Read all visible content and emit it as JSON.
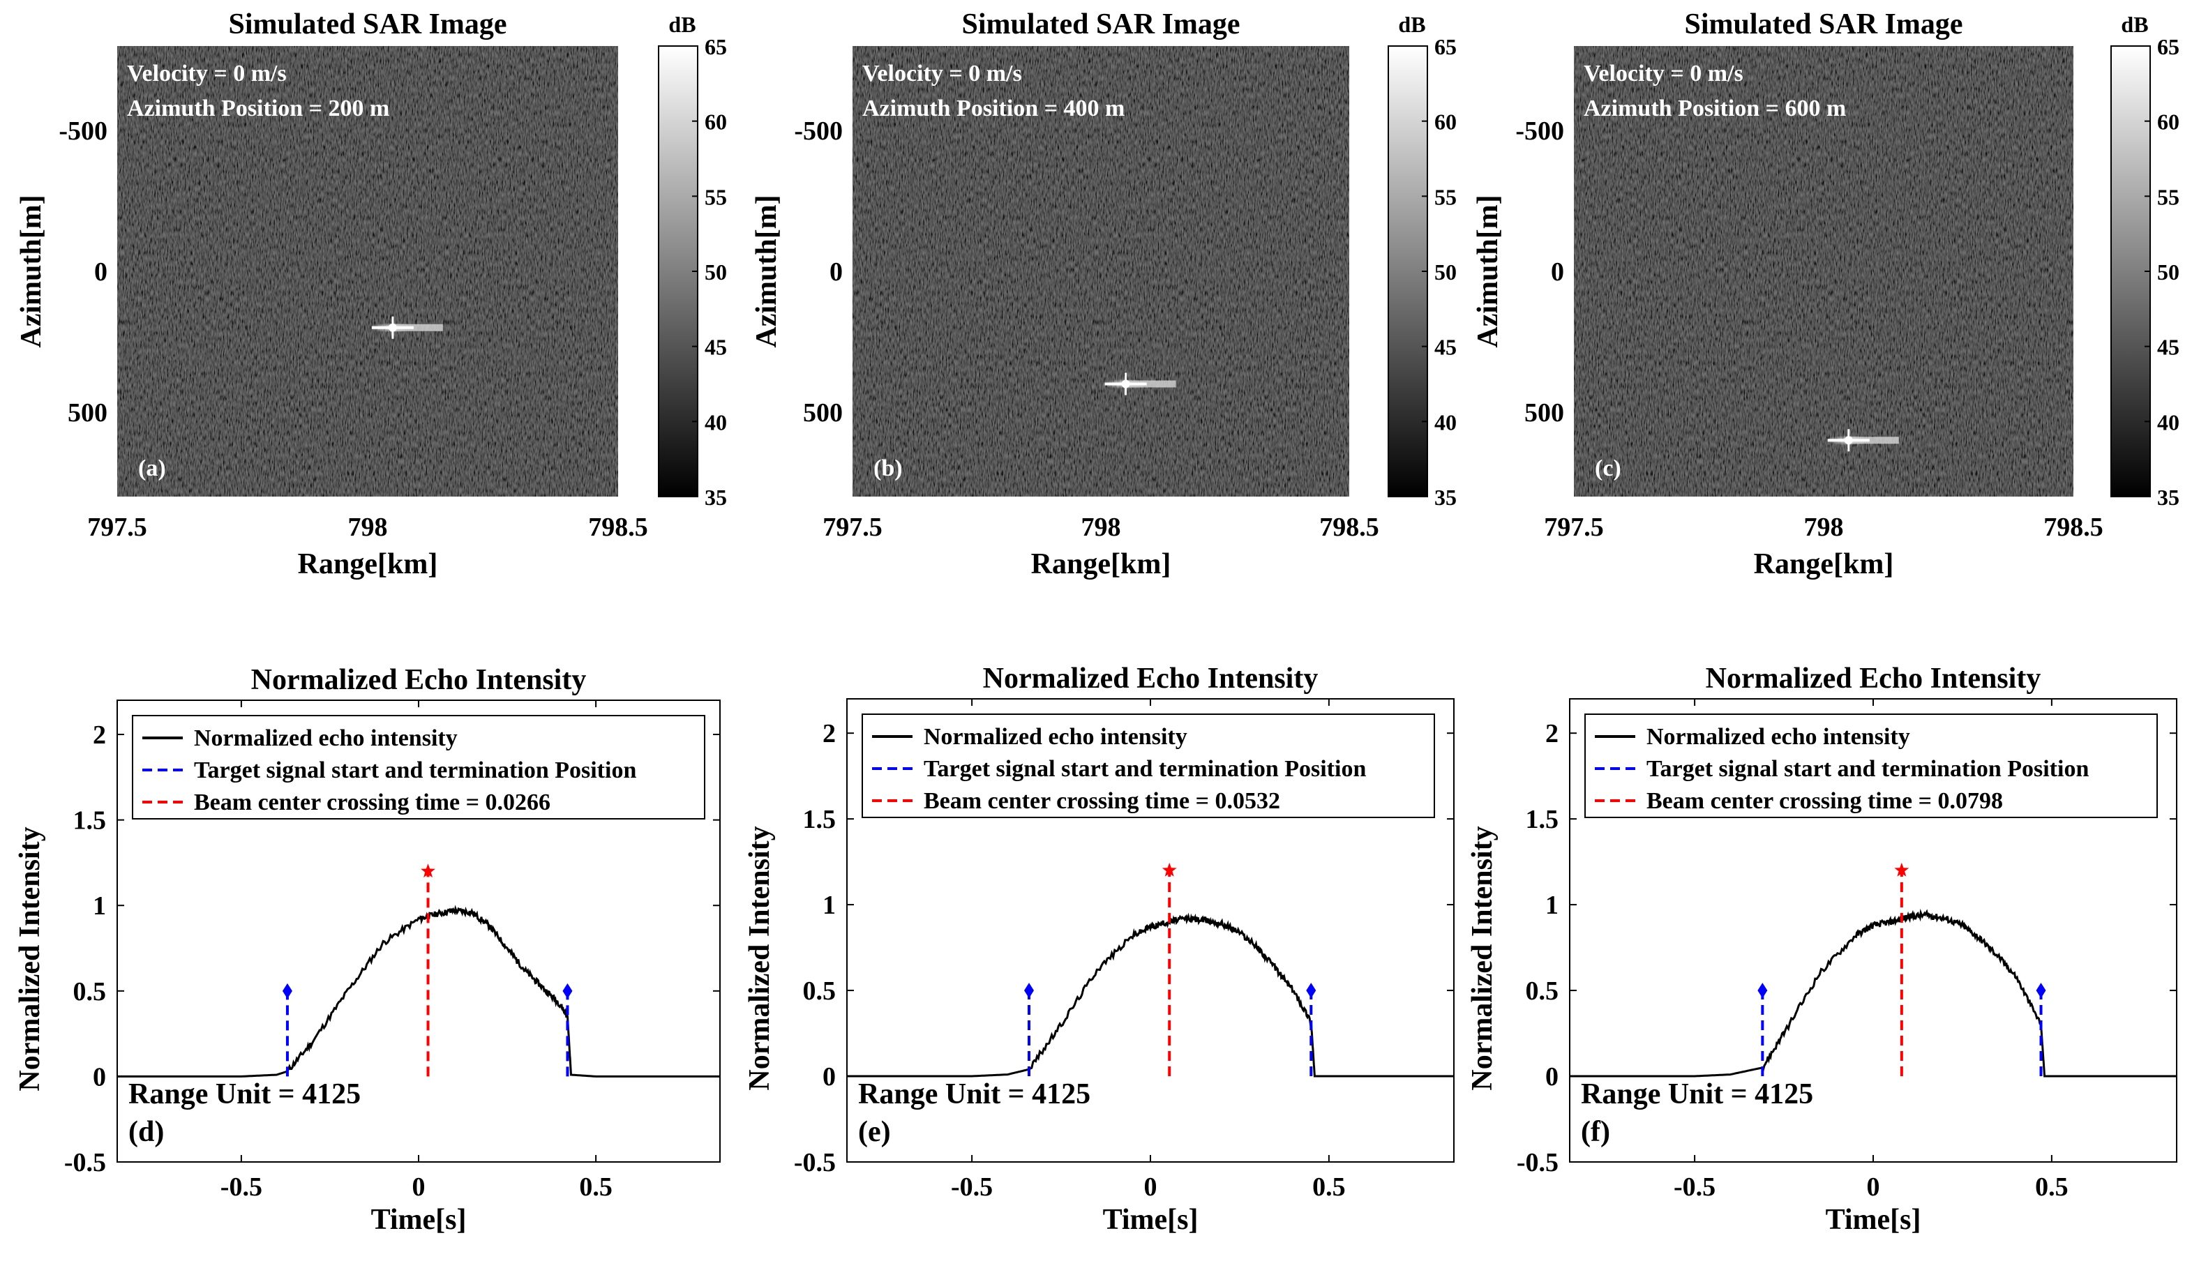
{
  "colors": {
    "echo_line": "#000000",
    "target_marker": "#0000ff",
    "beam_center": "#ff0000",
    "image_background": "#2a2a2a"
  },
  "chart_data": [
    {
      "type": "heatmap",
      "panel": "(a)",
      "title": "Simulated SAR Image",
      "xlabel": "Range[km]",
      "ylabel": "Azimuth[m]",
      "xlim": [
        797.5,
        798.5
      ],
      "ylim": [
        -800,
        800
      ],
      "xticks": [
        "797.5",
        "798",
        "798.5"
      ],
      "yticks": [
        "-500",
        "0",
        "500"
      ],
      "annotation_velocity": "Velocity = 0 m/s",
      "annotation_position": "Azimuth Position = 200 m",
      "colorbar": {
        "label": "dB",
        "range": [
          35,
          65
        ],
        "ticks": [
          "35",
          "40",
          "45",
          "50",
          "55",
          "60",
          "65"
        ]
      },
      "target": {
        "range_km": 798.05,
        "azimuth_m": 200
      }
    },
    {
      "type": "heatmap",
      "panel": "(b)",
      "title": "Simulated SAR Image",
      "xlabel": "Range[km]",
      "ylabel": "Azimuth[m]",
      "xlim": [
        797.5,
        798.5
      ],
      "ylim": [
        -800,
        800
      ],
      "xticks": [
        "797.5",
        "798",
        "798.5"
      ],
      "yticks": [
        "-500",
        "0",
        "500"
      ],
      "annotation_velocity": "Velocity = 0 m/s",
      "annotation_position": "Azimuth Position = 400 m",
      "colorbar": {
        "label": "dB",
        "range": [
          35,
          65
        ],
        "ticks": [
          "35",
          "40",
          "45",
          "50",
          "55",
          "60",
          "65"
        ]
      },
      "target": {
        "range_km": 798.05,
        "azimuth_m": 400
      }
    },
    {
      "type": "heatmap",
      "panel": "(c)",
      "title": "Simulated SAR Image",
      "xlabel": "Range[km]",
      "ylabel": "Azimuth[m]",
      "xlim": [
        797.5,
        798.5
      ],
      "ylim": [
        -800,
        800
      ],
      "xticks": [
        "797.5",
        "798",
        "798.5"
      ],
      "yticks": [
        "-500",
        "0",
        "500"
      ],
      "annotation_velocity": "Velocity = 0 m/s",
      "annotation_position": "Azimuth Position = 600 m",
      "colorbar": {
        "label": "dB",
        "range": [
          35,
          65
        ],
        "ticks": [
          "35",
          "40",
          "45",
          "50",
          "55",
          "60",
          "65"
        ]
      },
      "target": {
        "range_km": 798.05,
        "azimuth_m": 600
      }
    },
    {
      "type": "line",
      "panel": "(d)",
      "title": "Normalized Echo Intensity",
      "xlabel": "Time[s]",
      "ylabel": "Normalized Intensity",
      "xlim": [
        -0.85,
        0.85
      ],
      "ylim": [
        -0.5,
        2.2
      ],
      "xticks": [
        "-0.5",
        "0",
        "0.5"
      ],
      "yticks": [
        "-0.5",
        "0",
        "0.5",
        "1",
        "1.5",
        "2"
      ],
      "legend": [
        "Normalized echo intensity",
        "Target signal start and termination Position",
        "Beam center crossing time = 0.0266"
      ],
      "range_unit": "Range Unit = 4125",
      "start_time": -0.37,
      "end_time": 0.42,
      "beam_center_time": 0.0266,
      "marker_height": 0.5,
      "beam_star_value": 1.2,
      "curve_x": [
        -0.85,
        -0.5,
        -0.4,
        -0.37,
        -0.3,
        -0.2,
        -0.1,
        0.0,
        0.05,
        0.1,
        0.15,
        0.2,
        0.25,
        0.3,
        0.35,
        0.4,
        0.42,
        0.43,
        0.5,
        0.85
      ],
      "curve_y": [
        0,
        0,
        0.01,
        0.03,
        0.2,
        0.5,
        0.78,
        0.92,
        0.95,
        0.97,
        0.96,
        0.88,
        0.75,
        0.62,
        0.52,
        0.42,
        0.35,
        0.01,
        0,
        0
      ]
    },
    {
      "type": "line",
      "panel": "(e)",
      "title": "Normalized Echo Intensity",
      "xlabel": "Time[s]",
      "ylabel": "Normalized Intensity",
      "xlim": [
        -0.85,
        0.85
      ],
      "ylim": [
        -0.5,
        2.2
      ],
      "xticks": [
        "-0.5",
        "0",
        "0.5"
      ],
      "yticks": [
        "-0.5",
        "0",
        "0.5",
        "1",
        "1.5",
        "2"
      ],
      "legend": [
        "Normalized echo intensity",
        "Target signal start and termination Position",
        "Beam center crossing time = 0.0532"
      ],
      "range_unit": "Range Unit = 4125",
      "start_time": -0.34,
      "end_time": 0.45,
      "beam_center_time": 0.0532,
      "marker_height": 0.5,
      "beam_star_value": 1.2,
      "curve_x": [
        -0.85,
        -0.5,
        -0.4,
        -0.34,
        -0.25,
        -0.15,
        -0.05,
        0.0,
        0.05,
        0.1,
        0.15,
        0.2,
        0.25,
        0.3,
        0.35,
        0.4,
        0.45,
        0.46,
        0.5,
        0.85
      ],
      "curve_y": [
        0,
        0,
        0.01,
        0.04,
        0.3,
        0.62,
        0.82,
        0.87,
        0.9,
        0.92,
        0.91,
        0.89,
        0.84,
        0.75,
        0.63,
        0.5,
        0.32,
        0.0,
        0,
        0
      ]
    },
    {
      "type": "line",
      "panel": "(f)",
      "title": "Normalized Echo Intensity",
      "xlabel": "Time[s]",
      "ylabel": "Normalized Intensity",
      "xlim": [
        -0.85,
        0.85
      ],
      "ylim": [
        -0.5,
        2.2
      ],
      "xticks": [
        "-0.5",
        "0",
        "0.5"
      ],
      "yticks": [
        "-0.5",
        "0",
        "0.5",
        "1",
        "1.5",
        "2"
      ],
      "legend": [
        "Normalized echo intensity",
        "Target signal start and termination Position",
        "Beam center crossing time = 0.0798"
      ],
      "range_unit": "Range Unit = 4125",
      "start_time": -0.31,
      "end_time": 0.47,
      "beam_center_time": 0.0798,
      "marker_height": 0.5,
      "beam_star_value": 1.2,
      "curve_x": [
        -0.85,
        -0.5,
        -0.4,
        -0.31,
        -0.25,
        -0.15,
        -0.05,
        0.0,
        0.05,
        0.1,
        0.15,
        0.2,
        0.25,
        0.3,
        0.35,
        0.4,
        0.47,
        0.48,
        0.5,
        0.85
      ],
      "curve_y": [
        0,
        0,
        0.01,
        0.05,
        0.25,
        0.6,
        0.82,
        0.88,
        0.9,
        0.93,
        0.94,
        0.92,
        0.88,
        0.8,
        0.7,
        0.58,
        0.3,
        0.0,
        0,
        0
      ]
    }
  ]
}
